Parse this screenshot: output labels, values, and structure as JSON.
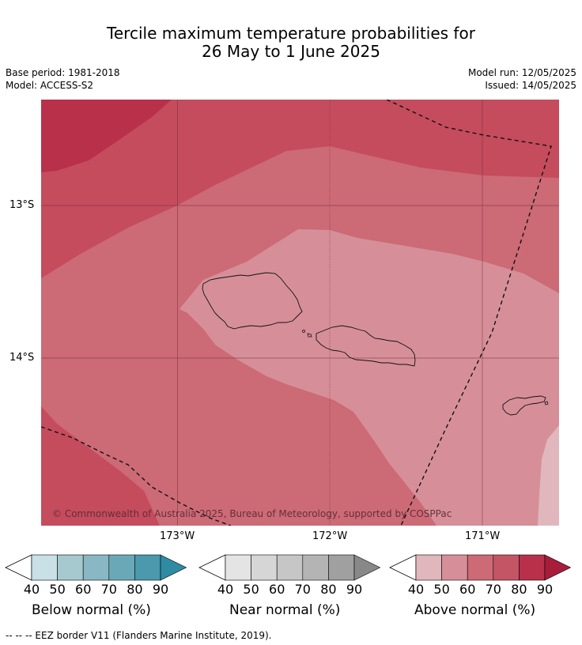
{
  "title_line1": "Tercile maximum temperature probabilities for",
  "title_line2": "26 May to 1 June 2025",
  "meta": {
    "base_period": "Base period: 1981-2018",
    "model": "Model: ACCESS-S2",
    "model_run": "Model run: 12/05/2025",
    "issued": "Issued: 14/05/2025"
  },
  "map": {
    "lat_labels": [
      "13°S",
      "14°S"
    ],
    "lon_labels": [
      "173°W",
      "172°W",
      "171°W"
    ],
    "copyright": "© Commonwealth of Australia 2025, Bureau of Meteorology, supported by COSPPac",
    "colors": {
      "above_90": "#b8304a",
      "above_80": "#c44c5d",
      "above_70": "#cc6a76",
      "above_60": "#d68f98",
      "above_50": "#e0b7bd"
    }
  },
  "colorbars": [
    {
      "title": "Below normal (%)",
      "ticks": [
        "40",
        "50",
        "60",
        "70",
        "80",
        "90"
      ],
      "colors": [
        "#c8e0e6",
        "#a6c8cf",
        "#89b7c3",
        "#6aa8b8",
        "#4a99ad",
        "#2e8ba3"
      ]
    },
    {
      "title": "Near normal (%)",
      "ticks": [
        "40",
        "50",
        "60",
        "70",
        "80",
        "90"
      ],
      "colors": [
        "#e4e4e4",
        "#d6d6d6",
        "#c6c6c6",
        "#b4b4b4",
        "#a0a0a0",
        "#888888"
      ]
    },
    {
      "title": "Above normal (%)",
      "ticks": [
        "40",
        "50",
        "60",
        "70",
        "80",
        "90"
      ],
      "colors": [
        "#e0b7bd",
        "#d68f98",
        "#cc6a76",
        "#c45565",
        "#b8304a",
        "#a81c3c"
      ]
    }
  ],
  "footnote": "--  --  -- EEZ border V11 (Flanders Marine Institute, 2019)."
}
